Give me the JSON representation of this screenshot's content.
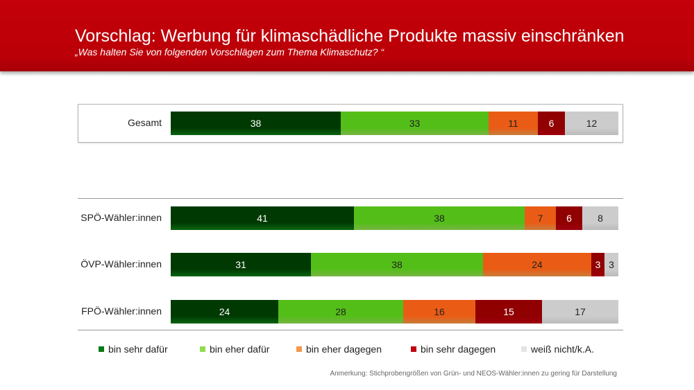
{
  "header": {
    "title": "Vorschlag: Werbung für klimaschädliche Produkte massiv einschränken",
    "subtitle": "„Was halten Sie von folgenden Vorschlägen zum Thema Klimaschutz? “"
  },
  "note": "Anmerkung: Stichprobengrößen von Grün- und NEOS-Wähler:innen zu gering für Darstellung",
  "chart_data": {
    "type": "bar",
    "orientation": "horizontal",
    "stacked": true,
    "unit": "%",
    "categories": [
      "Gesamt",
      "SPÖ-Wähler:innen",
      "ÖVP-Wähler:innen",
      "FPÖ-Wähler:innen"
    ],
    "series": [
      {
        "name": "bin sehr dafür",
        "color": "#0a7a14",
        "label_color": "#ffffff",
        "values": [
          38,
          41,
          31,
          24
        ]
      },
      {
        "name": "bin eher dafür",
        "color": "#92dc50",
        "label_color": "#222222",
        "values": [
          33,
          38,
          38,
          28
        ]
      },
      {
        "name": "bin eher dagegen",
        "color": "#f4994a",
        "label_color": "#222222",
        "values": [
          11,
          7,
          24,
          16
        ]
      },
      {
        "name": "bin sehr dagegen",
        "color": "#c00010",
        "label_color": "#ffffff",
        "values": [
          6,
          6,
          3,
          15
        ]
      },
      {
        "name": "weiß nicht/k.A.",
        "color": "#e4e4e4",
        "label_color": "#222222",
        "values": [
          12,
          8,
          3,
          17
        ]
      }
    ],
    "legend_position": "bottom",
    "grid": false
  }
}
